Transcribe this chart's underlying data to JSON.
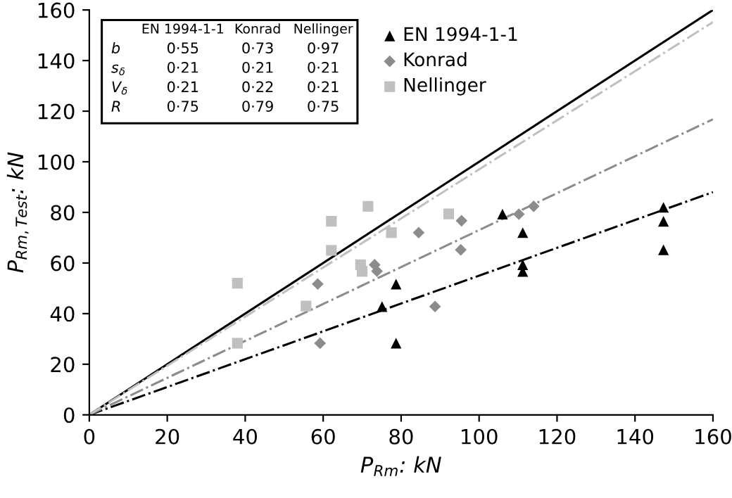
{
  "chart_data": {
    "type": "scatter",
    "xlabel": "P$_{Rm}$: kN",
    "ylabel": "P$_{Rm,Test}$: kN",
    "xlim": [
      0,
      160
    ],
    "ylim": [
      0,
      160
    ],
    "xticks": [
      0,
      20,
      40,
      60,
      80,
      100,
      120,
      140,
      160
    ],
    "yticks": [
      0,
      20,
      40,
      60,
      80,
      100,
      120,
      140,
      160
    ],
    "grid": false,
    "legend": "top",
    "series": [
      {
        "name": "EN 1994-1-1",
        "color": "#000000",
        "marker": "triangle",
        "x": [
          78.7,
          75.1,
          78.7,
          106,
          111.2,
          111.2,
          111.2,
          147.3,
          147.3,
          147.3
        ],
        "values": [
          51.7,
          42.8,
          28.3,
          79.3,
          72,
          59.3,
          56.7,
          82,
          76.5,
          65.2
        ]
      },
      {
        "name": "Konrad",
        "color": "#8c8c8c",
        "marker": "diamond",
        "x": [
          58.6,
          59.2,
          73.2,
          73.8,
          84.5,
          95.5,
          95.3,
          88.7,
          110.2,
          114
        ],
        "values": [
          51.7,
          28.3,
          59.3,
          56.8,
          72,
          76.7,
          65.2,
          42.8,
          79.3,
          82.4
        ]
      },
      {
        "name": "Nellinger",
        "color": "#c0c0c0",
        "marker": "square",
        "x": [
          38,
          38,
          55.6,
          62.1,
          62.1,
          69.6,
          70,
          71.5,
          77.5,
          92.2
        ],
        "values": [
          52,
          28.3,
          43,
          76.5,
          65,
          59.3,
          56.7,
          82.4,
          72,
          79.4
        ]
      },
      {
        "type": "line",
        "color": "#000000",
        "line_style": "solid",
        "x": [
          0,
          160
        ],
        "values": [
          0,
          160
        ]
      },
      {
        "type": "line",
        "color": "#000000",
        "line_style": "dashdot",
        "x": [
          0,
          160
        ],
        "values": [
          0,
          88
        ]
      },
      {
        "type": "line",
        "color": "#8c8c8c",
        "line_style": "dashdot",
        "x": [
          0,
          160
        ],
        "values": [
          0,
          116.8
        ]
      },
      {
        "type": "line",
        "color": "#c0c0c0",
        "line_style": "dashdot",
        "x": [
          0,
          160
        ],
        "values": [
          0,
          155.2
        ]
      }
    ],
    "annotations": [
      "EN 1994-1-1",
      "Konrad",
      "Nellinger",
      "b",
      "0·55",
      "0·73",
      "0·97",
      "s$_{δ}$",
      "0·21",
      "0·21",
      "0·21",
      "V$_{δ}$",
      "0·21",
      "0·22",
      "0·21",
      "R",
      "0·75",
      "0·79",
      "0·75"
    ]
  }
}
